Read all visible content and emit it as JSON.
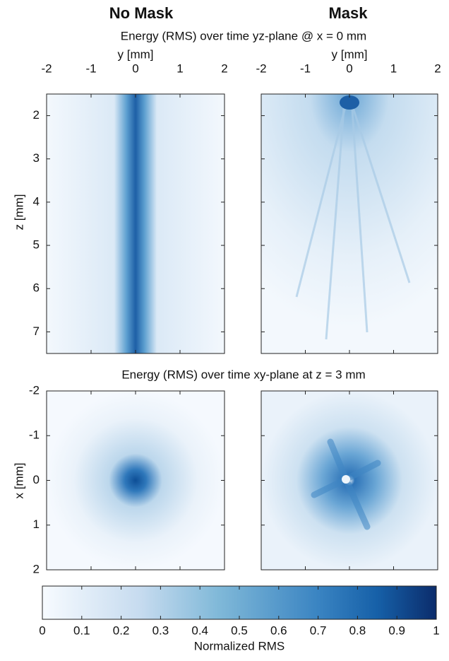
{
  "column_titles": [
    "No Mask",
    "Mask"
  ],
  "chart_data": [
    {
      "type": "heatmap",
      "title": "Energy (RMS) over time yz-plane @ x = 0 mm",
      "xlabel": "y [mm]",
      "ylabel": "z [mm]",
      "xlim": [
        -2,
        2
      ],
      "xticks": [
        -2,
        -1,
        0,
        1,
        2
      ],
      "ylim": [
        1.5,
        7.5
      ],
      "yticks": [
        2,
        3,
        4,
        5,
        6,
        7
      ]
    },
    {
      "type": "heatmap",
      "title": "Energy (RMS) over time xy-plane at z = 3 mm",
      "ylabel": "x [mm]",
      "xlim": [
        -2,
        2
      ],
      "xticks": [
        -2,
        -1,
        0,
        1,
        2
      ],
      "ylim": [
        -2,
        2
      ],
      "yticks": [
        -2,
        -1,
        0,
        1,
        2
      ]
    },
    {
      "type": "colorbar",
      "xlabel": "Normalized RMS",
      "xlim": [
        0,
        1
      ],
      "xticks": [
        0,
        0.1,
        0.2,
        0.3,
        0.4,
        0.5,
        0.6,
        0.7,
        0.8,
        0.9,
        1
      ]
    }
  ]
}
